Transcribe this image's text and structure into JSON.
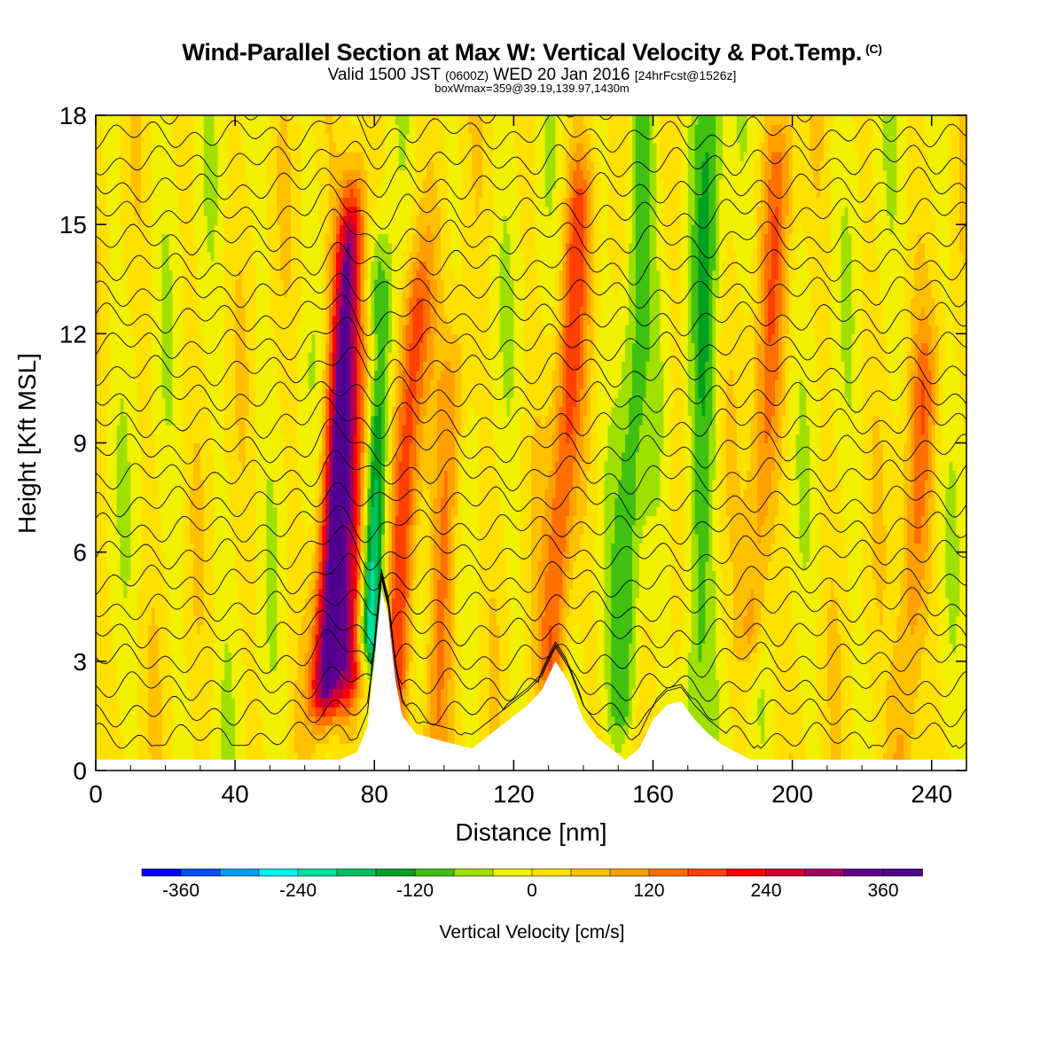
{
  "header": {
    "title": "Wind-Parallel Section at Max W: Vertical Velocity & Pot.Temp.",
    "copyright_mark": "(C)",
    "valid_prefix": "Valid 1500 JST",
    "valid_utc": "(0600Z)",
    "valid_date": "WED 20 Jan 2016",
    "forecast_tag": "[24hrFcst@1526z]",
    "box_info": "boxWmax=359@39.19,139.97,1430m"
  },
  "chart_data": {
    "type": "heatmap",
    "xlabel": "Distance [nm]",
    "ylabel": "Height [Kft MSL]",
    "xlim": [
      0,
      250
    ],
    "ylim": [
      0,
      18
    ],
    "x_ticks": [
      0,
      40,
      80,
      120,
      160,
      200,
      240
    ],
    "y_ticks": [
      0,
      3,
      6,
      9,
      12,
      15,
      18
    ],
    "grid": false,
    "fill_variable": "Vertical Velocity",
    "contour_variable": "Pot.Temp.",
    "colorbar": {
      "label": "Vertical Velocity [cm/s]",
      "placement": "bottom",
      "tick_labels": [
        "-360",
        "-240",
        "-120",
        "0",
        "120",
        "240",
        "360"
      ],
      "tick_values": [
        -360,
        -240,
        -120,
        0,
        120,
        240,
        360
      ],
      "boundaries": [
        -400,
        -360,
        -320,
        -280,
        -240,
        -200,
        -160,
        -120,
        -80,
        -40,
        0,
        40,
        80,
        120,
        160,
        200,
        240,
        280,
        320,
        360,
        400
      ],
      "colors": [
        "#0000f0",
        "#0050f0",
        "#00a0f0",
        "#00f0f0",
        "#00e0a0",
        "#00c060",
        "#00a020",
        "#40c010",
        "#a0e000",
        "#f0f000",
        "#ffe000",
        "#ffc000",
        "#ffa000",
        "#ff7000",
        "#ff4000",
        "#ff0000",
        "#d00030",
        "#a00060",
        "#600090",
        "#500090"
      ]
    },
    "wave_features": [
      {
        "x": 68,
        "w": 360,
        "z_bottom": 2.5,
        "z_top": 14
      },
      {
        "x": 75,
        "w": 260,
        "z_bottom": 3,
        "z_top": 11
      },
      {
        "x": 79,
        "w": -280,
        "z_bottom": 4,
        "z_top": 12
      },
      {
        "x": 88,
        "w": 180,
        "z_bottom": 1,
        "z_top": 12
      },
      {
        "x": 100,
        "w": 120,
        "z_bottom": 1,
        "z_top": 10
      },
      {
        "x": 133,
        "w": 160,
        "z_bottom": 3,
        "z_top": 15
      },
      {
        "x": 153,
        "w": -100,
        "z_bottom": 2,
        "z_top": 18
      },
      {
        "x": 173,
        "w": -100,
        "z_bottom": 2,
        "z_top": 18
      },
      {
        "x": 190,
        "w": 120,
        "z_bottom": 4,
        "z_top": 16
      },
      {
        "x": 235,
        "w": 120,
        "z_bottom": 0,
        "z_top": 10
      }
    ],
    "terrain": [
      [
        0,
        0.3
      ],
      [
        70,
        0.3
      ],
      [
        75,
        0.5
      ],
      [
        78,
        1.2
      ],
      [
        80,
        3
      ],
      [
        82,
        5
      ],
      [
        84,
        4.2
      ],
      [
        86,
        2.5
      ],
      [
        88,
        1.5
      ],
      [
        92,
        1.0
      ],
      [
        96,
        0.9
      ],
      [
        100,
        0.8
      ],
      [
        104,
        0.7
      ],
      [
        108,
        0.6
      ],
      [
        112,
        0.9
      ],
      [
        116,
        1.2
      ],
      [
        120,
        1.5
      ],
      [
        124,
        1.8
      ],
      [
        128,
        2.2
      ],
      [
        132,
        3.0
      ],
      [
        136,
        2.4
      ],
      [
        140,
        1.4
      ],
      [
        144,
        0.9
      ],
      [
        148,
        0.6
      ],
      [
        152,
        0.3
      ],
      [
        156,
        0.6
      ],
      [
        160,
        1.4
      ],
      [
        164,
        1.8
      ],
      [
        168,
        1.9
      ],
      [
        172,
        1.4
      ],
      [
        176,
        1.0
      ],
      [
        180,
        0.7
      ],
      [
        184,
        0.5
      ],
      [
        188,
        0.3
      ],
      [
        250,
        0.3
      ]
    ]
  }
}
